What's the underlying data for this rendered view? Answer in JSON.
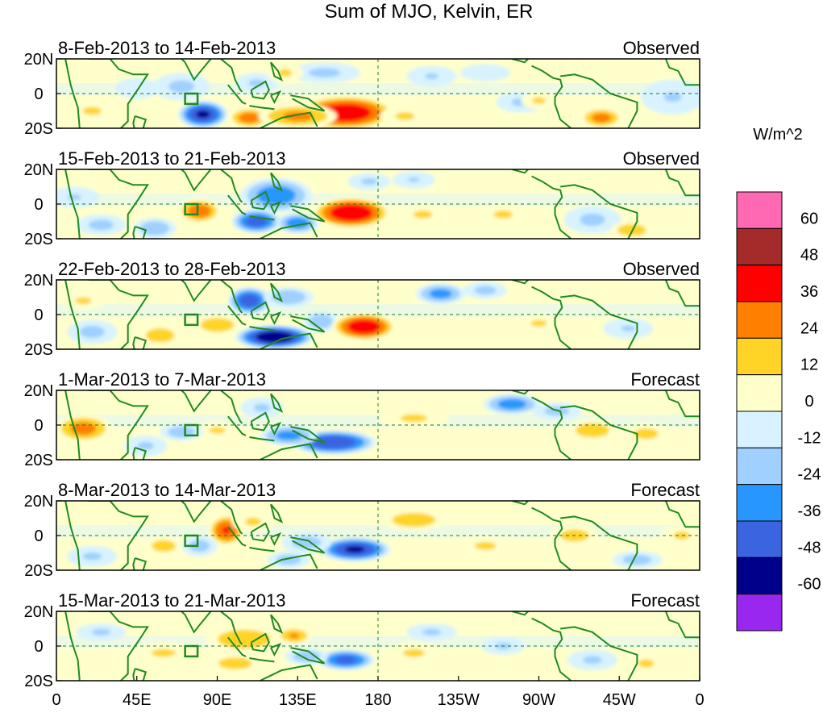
{
  "chart_data": {
    "type": "heatmap",
    "title": "Sum of MJO, Kelvin, ER",
    "units": "W/m^2",
    "x_ticks": [
      "0",
      "45E",
      "90E",
      "135E",
      "180",
      "135W",
      "90W",
      "45W",
      "0"
    ],
    "y_ticks": [
      "20N",
      "0",
      "20S"
    ],
    "colorbar": {
      "labels": [
        "60",
        "48",
        "36",
        "24",
        "12",
        "0",
        "-12",
        "-24",
        "-36",
        "-48",
        "-60"
      ],
      "colors": [
        "#ff69b4",
        "#a52a2a",
        "#ff0000",
        "#ff7f00",
        "#ffd427",
        "#ffffcc",
        "#d8f3ff",
        "#9fd0ff",
        "#2797ff",
        "#3b64e0",
        "#00008b",
        "#9a27ef"
      ]
    },
    "panels": [
      {
        "period": "8-Feb-2013 to 14-Feb-2013",
        "label": "Observed",
        "blobs": [
          {
            "lon": 82,
            "lat": -12,
            "rx": 14,
            "ry": 8,
            "value": -52
          },
          {
            "lon": 70,
            "lat": 4,
            "rx": 16,
            "ry": 8,
            "value": -15
          },
          {
            "lon": 112,
            "lat": 6,
            "rx": 12,
            "ry": 6,
            "value": -14
          },
          {
            "lon": 150,
            "lat": 12,
            "rx": 20,
            "ry": 6,
            "value": -15
          },
          {
            "lon": 108,
            "lat": -14,
            "rx": 12,
            "ry": 6,
            "value": 32
          },
          {
            "lon": 162,
            "lat": -11,
            "rx": 28,
            "ry": 10,
            "value": 48
          },
          {
            "lon": 135,
            "lat": -13,
            "rx": 22,
            "ry": 7,
            "value": 28
          },
          {
            "lon": 195,
            "lat": -13,
            "rx": 14,
            "ry": 6,
            "value": 14
          },
          {
            "lon": 20,
            "lat": -10,
            "rx": 14,
            "ry": 6,
            "value": 14
          },
          {
            "lon": 45,
            "lat": 3,
            "rx": 12,
            "ry": 6,
            "value": -12
          },
          {
            "lon": 305,
            "lat": -14,
            "rx": 12,
            "ry": 6,
            "value": 30
          },
          {
            "lon": 260,
            "lat": -5,
            "rx": 14,
            "ry": 6,
            "value": -14
          },
          {
            "lon": 270,
            "lat": -4,
            "rx": 10,
            "ry": 5,
            "value": 14
          },
          {
            "lon": 345,
            "lat": -2,
            "rx": 18,
            "ry": 10,
            "value": -13
          },
          {
            "lon": 240,
            "lat": 12,
            "rx": 14,
            "ry": 5,
            "value": -12
          },
          {
            "lon": 210,
            "lat": 10,
            "rx": 14,
            "ry": 6,
            "value": -13
          },
          {
            "lon": 128,
            "lat": 12,
            "rx": 10,
            "ry": 6,
            "value": 14
          }
        ]
      },
      {
        "period": "15-Feb-2013 to 21-Feb-2013",
        "label": "Observed",
        "blobs": [
          {
            "lon": 123,
            "lat": 5,
            "rx": 20,
            "ry": 10,
            "value": -34
          },
          {
            "lon": 112,
            "lat": -10,
            "rx": 14,
            "ry": 7,
            "value": -44
          },
          {
            "lon": 135,
            "lat": -11,
            "rx": 12,
            "ry": 6,
            "value": -34
          },
          {
            "lon": 80,
            "lat": -4,
            "rx": 12,
            "ry": 7,
            "value": 34
          },
          {
            "lon": 165,
            "lat": -5,
            "rx": 22,
            "ry": 9,
            "value": 50
          },
          {
            "lon": 205,
            "lat": -6,
            "rx": 14,
            "ry": 6,
            "value": 14
          },
          {
            "lon": 25,
            "lat": -12,
            "rx": 14,
            "ry": 6,
            "value": -16
          },
          {
            "lon": 55,
            "lat": -14,
            "rx": 12,
            "ry": 6,
            "value": -22
          },
          {
            "lon": 175,
            "lat": 13,
            "rx": 12,
            "ry": 5,
            "value": -14
          },
          {
            "lon": 200,
            "lat": 14,
            "rx": 12,
            "ry": 5,
            "value": -13
          },
          {
            "lon": 300,
            "lat": -9,
            "rx": 16,
            "ry": 8,
            "value": -15
          },
          {
            "lon": 322,
            "lat": -15,
            "rx": 12,
            "ry": 5,
            "value": 22
          },
          {
            "lon": 250,
            "lat": -6,
            "rx": 14,
            "ry": 6,
            "value": 14
          },
          {
            "lon": 10,
            "lat": 4,
            "rx": 14,
            "ry": 6,
            "value": -13
          }
        ]
      },
      {
        "period": "22-Feb-2013 to 28-Feb-2013",
        "label": "Observed",
        "blobs": [
          {
            "lon": 108,
            "lat": 8,
            "rx": 12,
            "ry": 8,
            "value": -46
          },
          {
            "lon": 122,
            "lat": -13,
            "rx": 22,
            "ry": 7,
            "value": -62
          },
          {
            "lon": 148,
            "lat": -4,
            "rx": 10,
            "ry": 6,
            "value": -22
          },
          {
            "lon": 172,
            "lat": -7,
            "rx": 18,
            "ry": 8,
            "value": 48
          },
          {
            "lon": 90,
            "lat": -6,
            "rx": 14,
            "ry": 6,
            "value": 22
          },
          {
            "lon": 58,
            "lat": -12,
            "rx": 12,
            "ry": 6,
            "value": 22
          },
          {
            "lon": 215,
            "lat": 12,
            "rx": 14,
            "ry": 6,
            "value": -30
          },
          {
            "lon": 240,
            "lat": 14,
            "rx": 12,
            "ry": 5,
            "value": -16
          },
          {
            "lon": 130,
            "lat": 10,
            "rx": 14,
            "ry": 6,
            "value": -22
          },
          {
            "lon": 20,
            "lat": -10,
            "rx": 14,
            "ry": 7,
            "value": -16
          },
          {
            "lon": 15,
            "lat": 8,
            "rx": 12,
            "ry": 5,
            "value": 14
          },
          {
            "lon": 320,
            "lat": -8,
            "rx": 14,
            "ry": 6,
            "value": -13
          },
          {
            "lon": 270,
            "lat": -5,
            "rx": 12,
            "ry": 5,
            "value": 14
          }
        ]
      },
      {
        "period": "1-Mar-2013 to 7-Mar-2013",
        "label": "Forecast",
        "blobs": [
          {
            "lon": 15,
            "lat": -2,
            "rx": 16,
            "ry": 8,
            "value": 30
          },
          {
            "lon": 155,
            "lat": -10,
            "rx": 24,
            "ry": 7,
            "value": -50
          },
          {
            "lon": 130,
            "lat": -6,
            "rx": 16,
            "ry": 6,
            "value": -30
          },
          {
            "lon": 90,
            "lat": -3,
            "rx": 12,
            "ry": 5,
            "value": 14
          },
          {
            "lon": 70,
            "lat": -4,
            "rx": 12,
            "ry": 5,
            "value": -20
          },
          {
            "lon": 115,
            "lat": 10,
            "rx": 12,
            "ry": 6,
            "value": -14
          },
          {
            "lon": 255,
            "lat": 12,
            "rx": 16,
            "ry": 6,
            "value": -32
          },
          {
            "lon": 300,
            "lat": -3,
            "rx": 14,
            "ry": 6,
            "value": 22
          },
          {
            "lon": 330,
            "lat": -5,
            "rx": 14,
            "ry": 6,
            "value": 16
          },
          {
            "lon": 50,
            "lat": -12,
            "rx": 12,
            "ry": 6,
            "value": -14
          },
          {
            "lon": 200,
            "lat": 4,
            "rx": 20,
            "ry": 6,
            "value": 14
          },
          {
            "lon": 280,
            "lat": 8,
            "rx": 14,
            "ry": 5,
            "value": -16
          }
        ]
      },
      {
        "period": "8-Mar-2013 to 14-Mar-2013",
        "label": "Forecast",
        "blobs": [
          {
            "lon": 95,
            "lat": 3,
            "rx": 10,
            "ry": 9,
            "value": 38
          },
          {
            "lon": 80,
            "lat": -6,
            "rx": 10,
            "ry": 6,
            "value": -18
          },
          {
            "lon": 167,
            "lat": -8,
            "rx": 20,
            "ry": 7,
            "value": -52
          },
          {
            "lon": 140,
            "lat": -4,
            "rx": 14,
            "ry": 6,
            "value": -18
          },
          {
            "lon": 200,
            "lat": 9,
            "rx": 18,
            "ry": 6,
            "value": 22
          },
          {
            "lon": 110,
            "lat": 8,
            "rx": 12,
            "ry": 6,
            "value": 14
          },
          {
            "lon": 130,
            "lat": -14,
            "rx": 12,
            "ry": 5,
            "value": -18
          },
          {
            "lon": 60,
            "lat": -6,
            "rx": 10,
            "ry": 5,
            "value": 22
          },
          {
            "lon": 290,
            "lat": 0,
            "rx": 14,
            "ry": 6,
            "value": 18
          },
          {
            "lon": 325,
            "lat": -14,
            "rx": 14,
            "ry": 5,
            "value": -18
          },
          {
            "lon": 240,
            "lat": -6,
            "rx": 16,
            "ry": 6,
            "value": 14
          },
          {
            "lon": 350,
            "lat": 0,
            "rx": 12,
            "ry": 6,
            "value": 14
          },
          {
            "lon": 20,
            "lat": -12,
            "rx": 14,
            "ry": 6,
            "value": -14
          }
        ]
      },
      {
        "period": "15-Mar-2013 to 21-Mar-2013",
        "label": "Forecast",
        "blobs": [
          {
            "lon": 105,
            "lat": 4,
            "rx": 22,
            "ry": 8,
            "value": 22
          },
          {
            "lon": 133,
            "lat": 6,
            "rx": 10,
            "ry": 5,
            "value": 26
          },
          {
            "lon": 162,
            "lat": -8,
            "rx": 16,
            "ry": 6,
            "value": -42
          },
          {
            "lon": 140,
            "lat": -6,
            "rx": 12,
            "ry": 5,
            "value": -20
          },
          {
            "lon": 100,
            "lat": -10,
            "rx": 14,
            "ry": 5,
            "value": 22
          },
          {
            "lon": 60,
            "lat": -4,
            "rx": 18,
            "ry": 6,
            "value": 14
          },
          {
            "lon": 200,
            "lat": -4,
            "rx": 16,
            "ry": 6,
            "value": 14
          },
          {
            "lon": 210,
            "lat": 8,
            "rx": 14,
            "ry": 5,
            "value": -14
          },
          {
            "lon": 300,
            "lat": -8,
            "rx": 14,
            "ry": 6,
            "value": -14
          },
          {
            "lon": 330,
            "lat": -10,
            "rx": 12,
            "ry": 6,
            "value": 14
          },
          {
            "lon": 25,
            "lat": 8,
            "rx": 14,
            "ry": 5,
            "value": -14
          },
          {
            "lon": 250,
            "lat": 0,
            "rx": 12,
            "ry": 5,
            "value": -14
          }
        ]
      }
    ]
  }
}
